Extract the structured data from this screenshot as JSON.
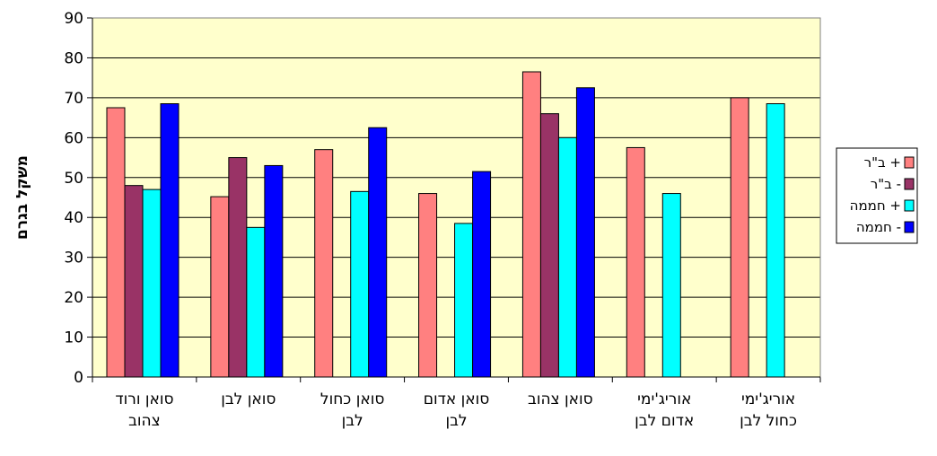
{
  "chart_data": {
    "type": "bar",
    "ylabel": "משקל בגרם",
    "ylim": [
      0,
      90
    ],
    "yticks": [
      "0",
      "10",
      "20",
      "30",
      "40",
      "50",
      "60",
      "70",
      "80",
      "90"
    ],
    "grid": true,
    "legend_position": "right",
    "plot_background": "#ffffcc",
    "categories": [
      [
        "סואן ורוד",
        "צהוב"
      ],
      [
        "סואן לבן"
      ],
      [
        "סואן כחול",
        "לבן"
      ],
      [
        "סואן אדום",
        "לבן"
      ],
      [
        "סואן צהוב"
      ],
      [
        "אוריג'ימי",
        "אדום לבן"
      ],
      [
        "אוריג'ימי",
        "כחול לבן"
      ]
    ],
    "series": [
      {
        "name": "ב\"ר +",
        "color": "#ff8080",
        "values": [
          67.5,
          45.2,
          57.0,
          46.0,
          76.5,
          57.5,
          70.0
        ]
      },
      {
        "name": "ב\"ר -",
        "color": "#993366",
        "values": [
          48.0,
          55.0,
          null,
          null,
          66.0,
          null,
          null
        ]
      },
      {
        "name": "חממה +",
        "color": "#00ffff",
        "values": [
          47.0,
          37.5,
          46.5,
          38.5,
          60.0,
          46.0,
          68.5
        ]
      },
      {
        "name": "חממה -",
        "color": "#0000ff",
        "values": [
          68.5,
          53.0,
          62.5,
          51.5,
          72.5,
          null,
          null
        ]
      }
    ]
  }
}
